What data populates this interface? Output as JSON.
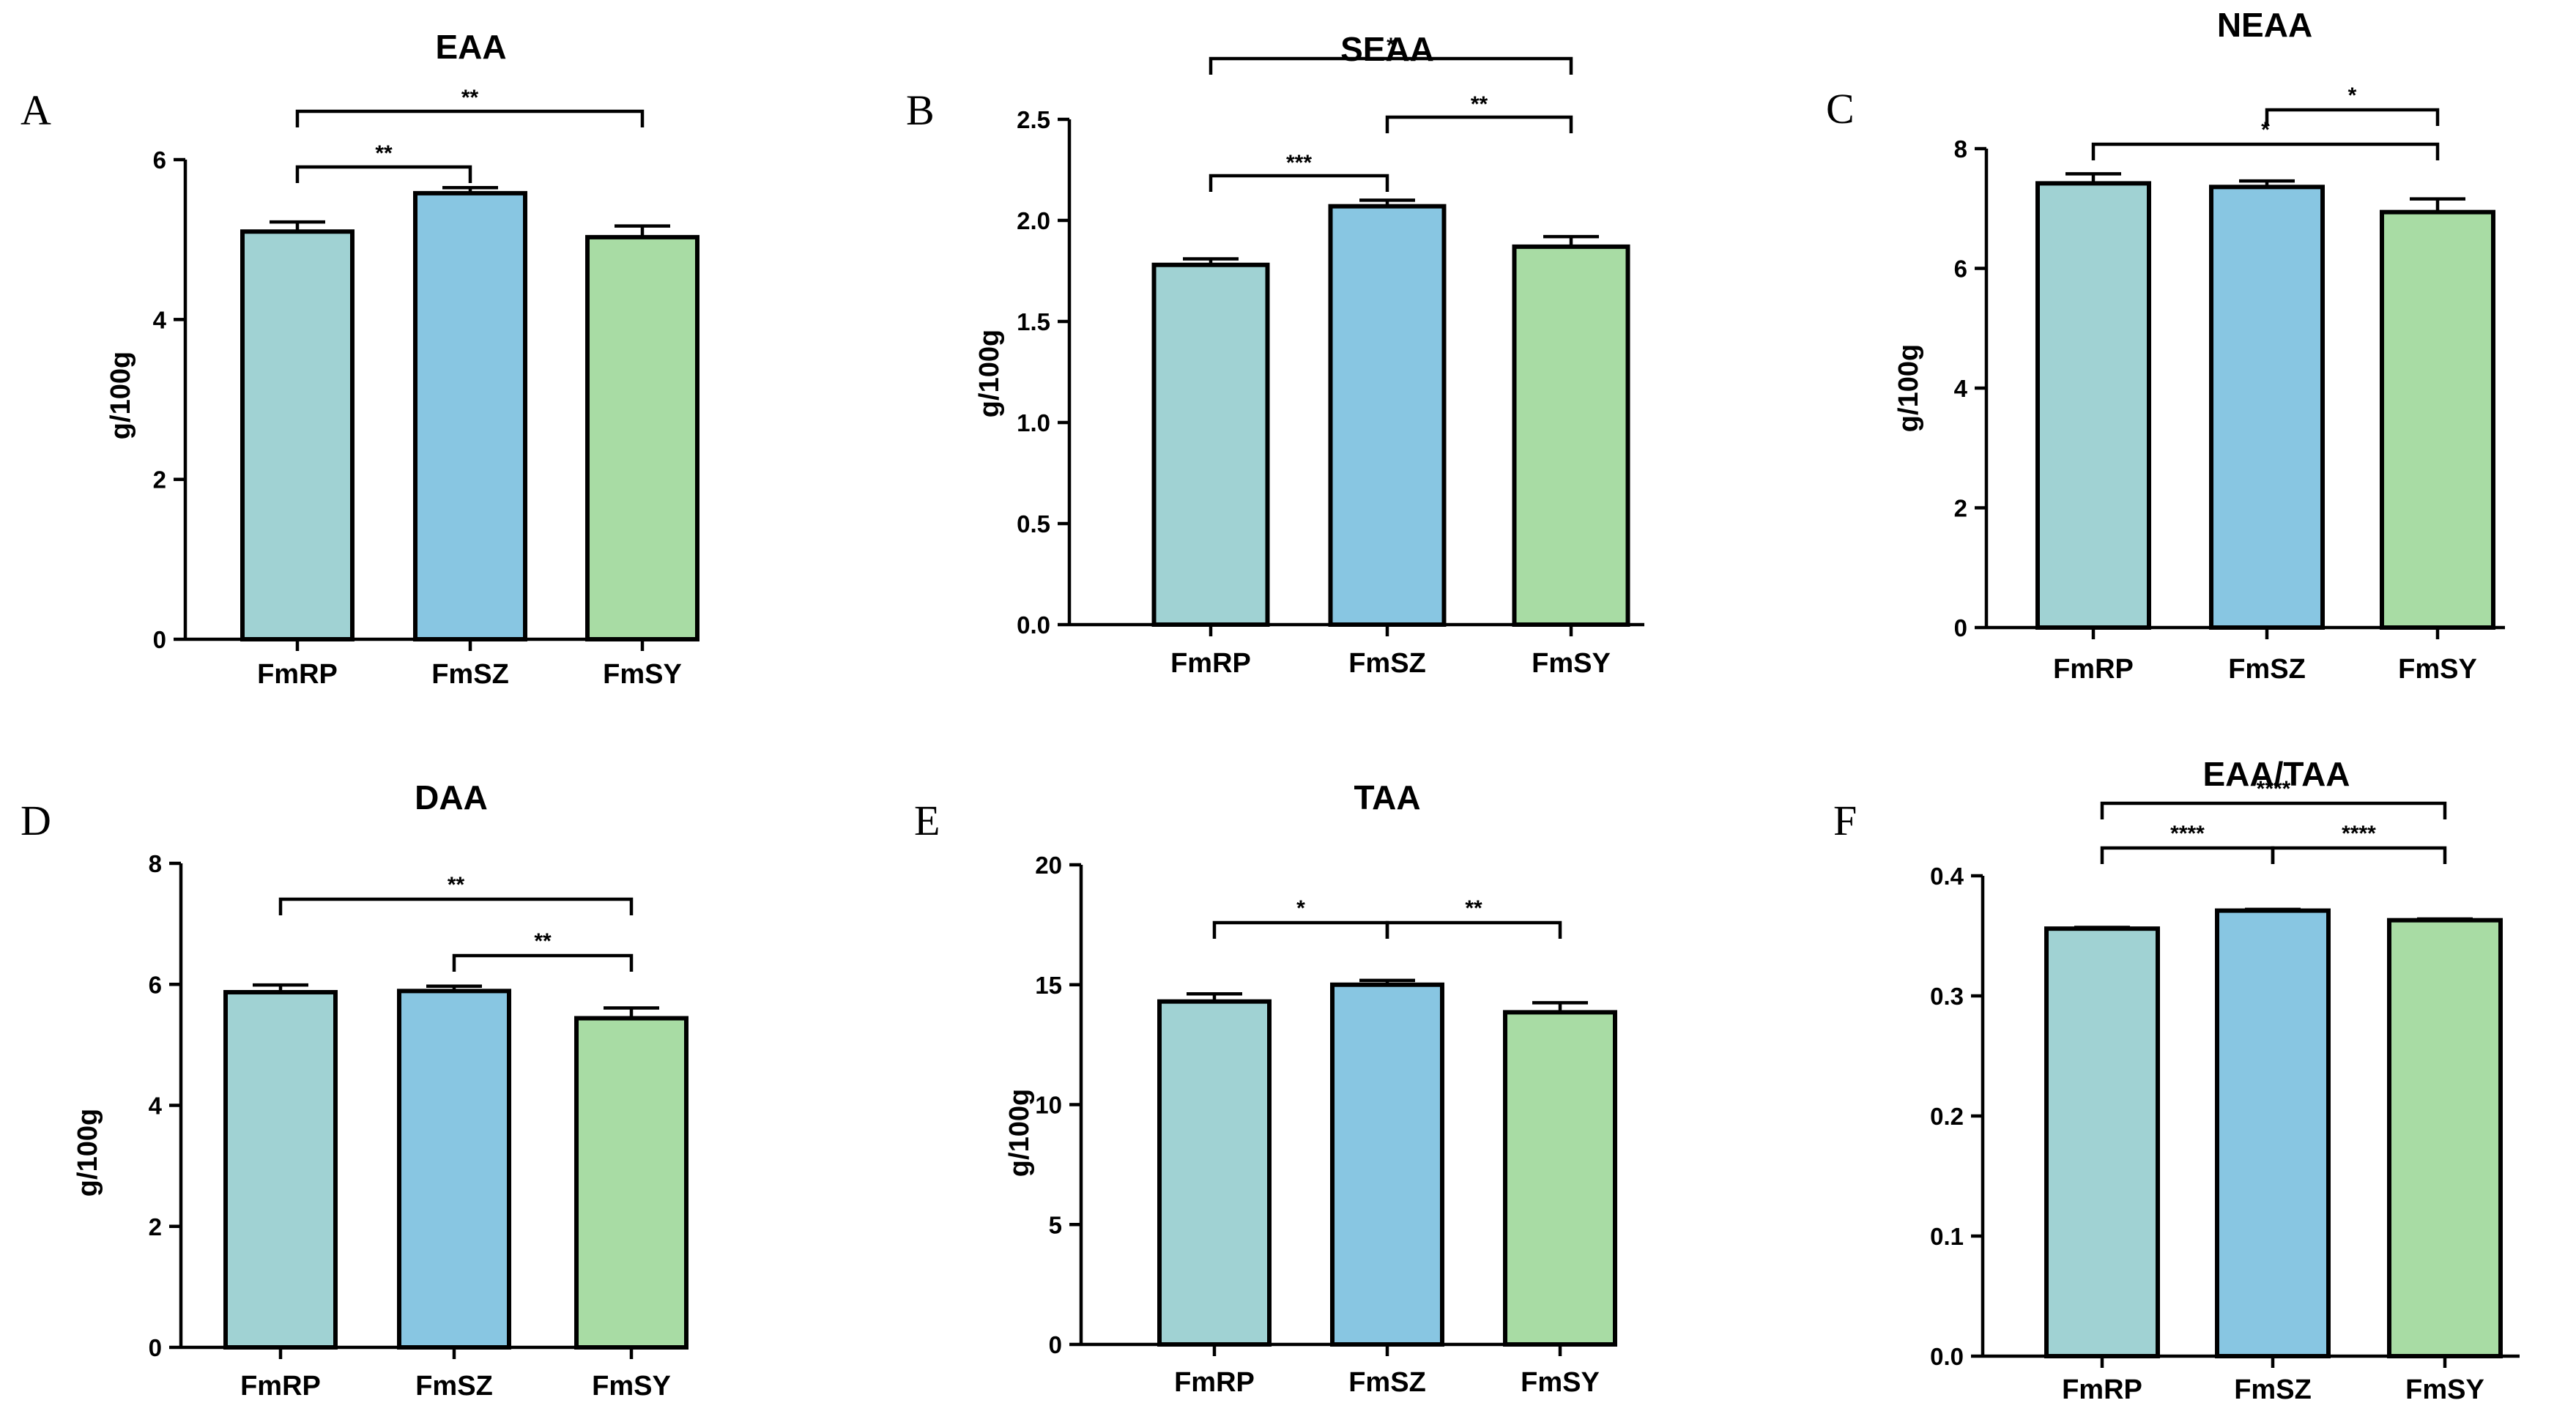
{
  "colors": {
    "FmRP": "#a0d2d3",
    "FmSZ": "#88c6e2",
    "FmSY": "#a8dca4"
  },
  "chart_data": [
    {
      "panel": "A",
      "type": "bar",
      "title": "EAA",
      "ylabel": "g/100g",
      "categories": [
        "FmRP",
        "FmSZ",
        "FmSY"
      ],
      "values": [
        5.1,
        5.58,
        5.03
      ],
      "errors": [
        0.12,
        0.07,
        0.14
      ],
      "ylim": [
        0,
        6
      ],
      "ticks": [
        "0",
        "2",
        "4",
        "6"
      ],
      "comparisons": [
        {
          "from": 0,
          "to": 1,
          "label": "**"
        },
        {
          "from": 0,
          "to": 2,
          "label": "**"
        }
      ]
    },
    {
      "panel": "B",
      "type": "bar",
      "title": "SEAA",
      "ylabel": "g/100g",
      "categories": [
        "FmRP",
        "FmSZ",
        "FmSY"
      ],
      "values": [
        1.78,
        2.07,
        1.87
      ],
      "errors": [
        0.03,
        0.03,
        0.05
      ],
      "ylim": [
        0,
        2.5
      ],
      "ticks": [
        "0.0",
        "0.5",
        "1.0",
        "1.5",
        "2.0",
        "2.5"
      ],
      "comparisons": [
        {
          "from": 0,
          "to": 1,
          "label": "***"
        },
        {
          "from": 1,
          "to": 2,
          "label": "**"
        },
        {
          "from": 0,
          "to": 2,
          "label": "*"
        }
      ]
    },
    {
      "panel": "C",
      "type": "bar",
      "title": "NEAA",
      "ylabel": "g/100g",
      "categories": [
        "FmRP",
        "FmSZ",
        "FmSY"
      ],
      "values": [
        7.42,
        7.36,
        6.94
      ],
      "errors": [
        0.16,
        0.1,
        0.22
      ],
      "ylim": [
        0,
        8
      ],
      "ticks": [
        "0",
        "2",
        "4",
        "6",
        "8"
      ],
      "comparisons": [
        {
          "from": 1,
          "to": 2,
          "label": "*"
        },
        {
          "from": 0,
          "to": 2,
          "label": "*"
        }
      ]
    },
    {
      "panel": "D",
      "type": "bar",
      "title": "DAA",
      "ylabel": "g/100g",
      "categories": [
        "FmRP",
        "FmSZ",
        "FmSY"
      ],
      "values": [
        5.87,
        5.89,
        5.44
      ],
      "errors": [
        0.12,
        0.08,
        0.17
      ],
      "ylim": [
        0,
        8
      ],
      "ticks": [
        "0",
        "2",
        "4",
        "6",
        "8"
      ],
      "comparisons": [
        {
          "from": 1,
          "to": 2,
          "label": "**"
        },
        {
          "from": 0,
          "to": 2,
          "label": "**"
        }
      ]
    },
    {
      "panel": "E",
      "type": "bar",
      "title": "TAA",
      "ylabel": "g/100g",
      "categories": [
        "FmRP",
        "FmSZ",
        "FmSY"
      ],
      "values": [
        14.3,
        15.0,
        13.85
      ],
      "errors": [
        0.32,
        0.18,
        0.4
      ],
      "ylim": [
        0,
        20
      ],
      "ticks": [
        "0",
        "5",
        "10",
        "15",
        "20"
      ],
      "comparisons": [
        {
          "from": 0,
          "to": 1,
          "label": "*"
        },
        {
          "from": 1,
          "to": 2,
          "label": "**"
        }
      ]
    },
    {
      "panel": "F",
      "type": "bar",
      "title": "EAA/TAA",
      "ylabel": "",
      "categories": [
        "FmRP",
        "FmSZ",
        "FmSY"
      ],
      "values": [
        0.356,
        0.371,
        0.363
      ],
      "errors": [
        0.001,
        0.001,
        0.001
      ],
      "ylim": [
        0,
        0.4
      ],
      "ticks": [
        "0.0",
        "0.1",
        "0.2",
        "0.3",
        "0.4"
      ],
      "comparisons": [
        {
          "from": 0,
          "to": 1,
          "label": "****"
        },
        {
          "from": 1,
          "to": 2,
          "label": "****"
        },
        {
          "from": 0,
          "to": 2,
          "label": "****"
        }
      ]
    }
  ]
}
